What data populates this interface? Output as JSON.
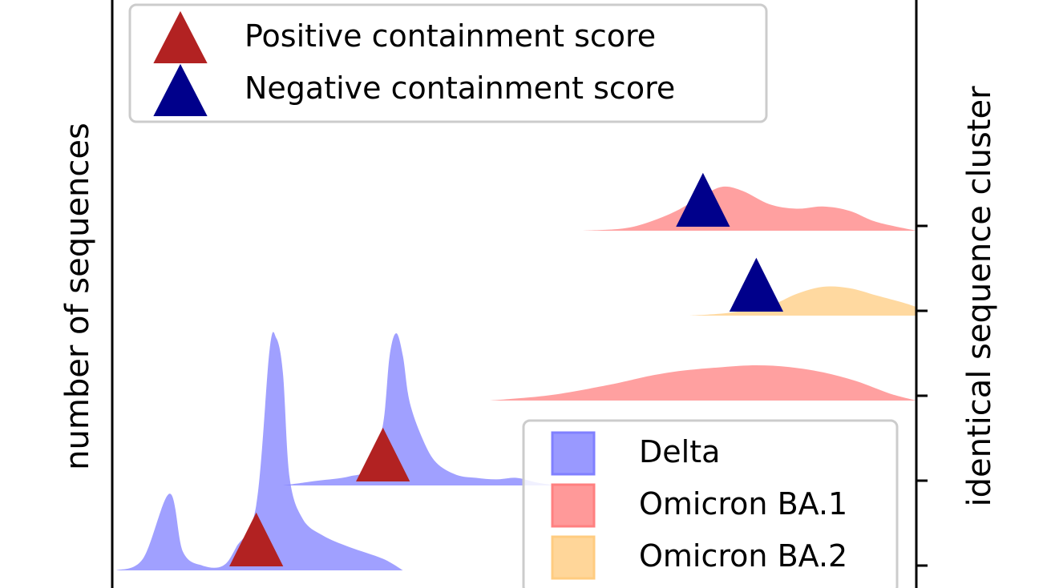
{
  "chart_data": {
    "type": "ridgeline",
    "ylabel_left": "number of sequences",
    "ylabel_right": "identical sequence cluster",
    "rows": [
      {
        "cluster": 1,
        "variant": "Delta",
        "color": "#8080ff",
        "x": [
          0.0,
          0.04,
          0.08,
          0.1,
          0.13,
          0.16,
          0.18,
          0.21,
          0.23,
          0.24,
          0.25,
          0.26,
          0.28,
          0.31,
          0.35,
          0.4,
          0.43
        ],
        "y": [
          0.0,
          0.05,
          0.33,
          0.08,
          0.02,
          0.02,
          0.1,
          0.28,
          0.95,
          1.0,
          0.85,
          0.4,
          0.22,
          0.15,
          0.1,
          0.05,
          0.0
        ],
        "score_x": 0.21,
        "score_sign": "positive"
      },
      {
        "cluster": 2,
        "variant": "Delta",
        "color": "#8080ff",
        "x": [
          0.25,
          0.3,
          0.35,
          0.38,
          0.4,
          0.41,
          0.42,
          0.43,
          0.44,
          0.46,
          0.48,
          0.51,
          0.54,
          0.57,
          0.6,
          0.63,
          0.66
        ],
        "y": [
          0.0,
          0.03,
          0.06,
          0.12,
          0.4,
          0.85,
          1.0,
          0.85,
          0.55,
          0.3,
          0.15,
          0.07,
          0.05,
          0.04,
          0.05,
          0.02,
          0.0
        ],
        "score_x": 0.4,
        "score_sign": "positive"
      },
      {
        "cluster": 3,
        "variant": "Omicron BA.1",
        "color": "#ff8080",
        "x": [
          0.56,
          0.65,
          0.74,
          0.8,
          0.85,
          0.91,
          0.96,
          1.01,
          1.06,
          1.11,
          1.16,
          1.2
        ],
        "y": [
          0.0,
          0.15,
          0.45,
          0.7,
          0.85,
          0.95,
          1.0,
          0.95,
          0.8,
          0.55,
          0.2,
          0.0
        ],
        "score_x": null
      },
      {
        "cluster": 4,
        "variant": "Omicron BA.2",
        "color": "#ffcc80",
        "x": [
          0.86,
          0.92,
          0.98,
          1.02,
          1.06,
          1.1,
          1.14,
          1.18,
          1.2
        ],
        "y": [
          0.0,
          0.1,
          0.35,
          0.75,
          1.0,
          0.95,
          0.7,
          0.45,
          0.3
        ],
        "score_x": 0.96,
        "score_sign": "negative"
      },
      {
        "cluster": 5,
        "variant": "Omicron BA.1",
        "color": "#ff8080",
        "x": [
          0.7,
          0.76,
          0.8,
          0.84,
          0.88,
          0.91,
          0.94,
          0.98,
          1.02,
          1.06,
          1.1,
          1.14,
          1.2
        ],
        "y": [
          0.0,
          0.05,
          0.2,
          0.45,
          0.8,
          1.0,
          0.9,
          0.6,
          0.5,
          0.55,
          0.45,
          0.2,
          0.0
        ],
        "score_x": 0.88,
        "score_sign": "negative"
      }
    ],
    "legend_markers": {
      "position": "top-left",
      "entries": [
        {
          "label": "Positive containment score",
          "color": "#b22222"
        },
        {
          "label": "Negative containment score",
          "color": "#00008b"
        }
      ]
    },
    "legend_variants": {
      "position": "bottom-right",
      "entries": [
        {
          "label": "Delta",
          "color": "#8080ff"
        },
        {
          "label": "Omicron BA.1",
          "color": "#ff8080"
        },
        {
          "label": "Omicron BA.2",
          "color": "#ffcc80"
        }
      ]
    }
  }
}
